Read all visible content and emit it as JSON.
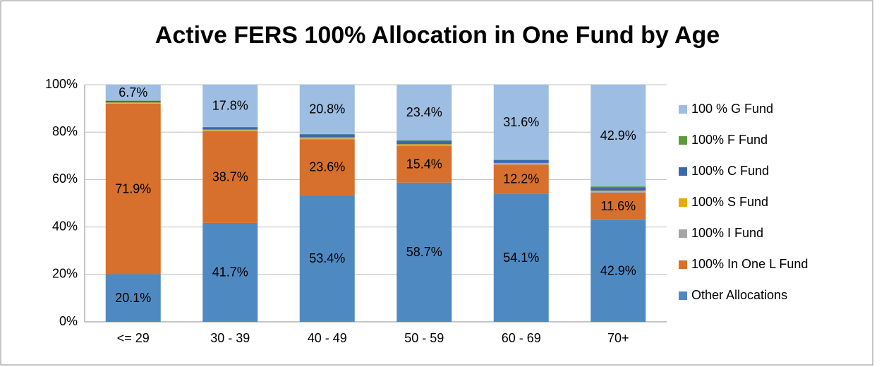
{
  "chart_data": {
    "type": "stacked_bar",
    "title": "Active FERS 100% Allocation in One Fund by Age",
    "categories": [
      "<= 29",
      "30 - 39",
      "40 - 49",
      "50 - 59",
      "60 - 69",
      "70+"
    ],
    "series": [
      {
        "name": "Other Allocations",
        "color": "#4f89c1",
        "values": [
          20.1,
          41.7,
          53.4,
          58.7,
          54.1,
          42.9
        ],
        "value_labels": [
          "20.1%",
          "41.7%",
          "53.4%",
          "58.7%",
          "54.1%",
          "42.9%"
        ]
      },
      {
        "name": "100%  In One L Fund",
        "color": "#d6702c",
        "values": [
          71.9,
          38.7,
          23.6,
          15.4,
          12.2,
          11.6
        ],
        "value_labels": [
          "71.9%",
          "38.7%",
          "23.6%",
          "15.4%",
          "12.2%",
          "11.6%"
        ]
      },
      {
        "name": "100%  I Fund",
        "color": "#a5a5a5",
        "values": [
          0.2,
          0.3,
          0.3,
          0.3,
          0.3,
          0.3
        ]
      },
      {
        "name": "100%  S Fund",
        "color": "#eaa900",
        "values": [
          0.3,
          0.4,
          0.5,
          0.5,
          0.4,
          0.5
        ]
      },
      {
        "name": "100%  C Fund",
        "color": "#3b68ad",
        "values": [
          0.7,
          1.0,
          1.3,
          1.5,
          1.2,
          1.5
        ]
      },
      {
        "name": "100% F Fund",
        "color": "#5c9b3b",
        "values": [
          0.1,
          0.1,
          0.1,
          0.2,
          0.2,
          0.3
        ]
      },
      {
        "name": "100 % G Fund",
        "color": "#9dbde2",
        "values": [
          6.7,
          17.8,
          20.8,
          23.4,
          31.6,
          42.9
        ],
        "value_labels": [
          "6.7%",
          "17.8%",
          "20.8%",
          "23.4%",
          "31.6%",
          "42.9%"
        ]
      }
    ],
    "ylim": [
      0,
      100
    ],
    "yticks": [
      {
        "value": 0,
        "label": "0%"
      },
      {
        "value": 20,
        "label": "20%"
      },
      {
        "value": 40,
        "label": "40%"
      },
      {
        "value": 60,
        "label": "60%"
      },
      {
        "value": 80,
        "label": "80%"
      },
      {
        "value": 100,
        "label": "100%"
      }
    ],
    "grid": true,
    "legend": "right"
  }
}
